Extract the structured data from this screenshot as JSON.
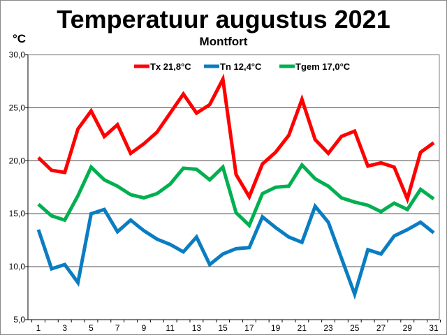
{
  "chart_data": {
    "type": "line",
    "title": "Temperatuur augustus 2021",
    "subtitle": "Montfort",
    "ylabel": "°C",
    "xlabel": "",
    "ylim": [
      5,
      30
    ],
    "yticks": [
      "5,0",
      "10,0",
      "15,0",
      "20,0",
      "25,0",
      "30,0"
    ],
    "ytick_values": [
      5,
      10,
      15,
      20,
      25,
      30
    ],
    "x": [
      1,
      2,
      3,
      4,
      5,
      6,
      7,
      8,
      9,
      10,
      11,
      12,
      13,
      14,
      15,
      16,
      17,
      18,
      19,
      20,
      21,
      22,
      23,
      24,
      25,
      26,
      27,
      28,
      29,
      30,
      31
    ],
    "xtick_labels": [
      "1",
      "3",
      "5",
      "7",
      "9",
      "11",
      "13",
      "15",
      "17",
      "19",
      "21",
      "23",
      "25",
      "27",
      "29",
      "31"
    ],
    "grid": true,
    "legend_position": "top-right",
    "series": [
      {
        "name": "Tx 21,8°C",
        "color": "#ff0000",
        "values": [
          20.3,
          19.1,
          18.9,
          23.0,
          24.7,
          22.3,
          23.4,
          20.7,
          21.6,
          22.7,
          24.5,
          26.3,
          24.5,
          25.3,
          27.7,
          18.7,
          16.6,
          19.7,
          20.8,
          22.4,
          25.8,
          22.0,
          20.7,
          22.3,
          22.8,
          19.5,
          19.8,
          19.4,
          16.4,
          20.8,
          21.7
        ]
      },
      {
        "name": "Tn 12,4°C",
        "color": "#0a7dc2",
        "values": [
          13.5,
          9.8,
          10.2,
          8.5,
          15.0,
          15.4,
          13.3,
          14.4,
          13.4,
          12.6,
          12.1,
          11.4,
          12.8,
          10.2,
          11.2,
          11.7,
          11.8,
          14.7,
          13.7,
          12.8,
          12.3,
          15.7,
          14.2,
          10.8,
          7.4,
          11.6,
          11.2,
          12.9,
          13.5,
          14.2,
          13.2
        ]
      },
      {
        "name": "Tgem 17,0°C",
        "color": "#00b050",
        "values": [
          15.9,
          14.8,
          14.4,
          16.7,
          19.4,
          18.2,
          17.6,
          16.8,
          16.5,
          16.9,
          17.8,
          19.3,
          19.2,
          18.2,
          19.4,
          15.1,
          13.9,
          16.9,
          17.5,
          17.6,
          19.6,
          18.3,
          17.6,
          16.5,
          16.1,
          15.8,
          15.2,
          16.0,
          15.4,
          17.3,
          16.4
        ]
      }
    ]
  }
}
